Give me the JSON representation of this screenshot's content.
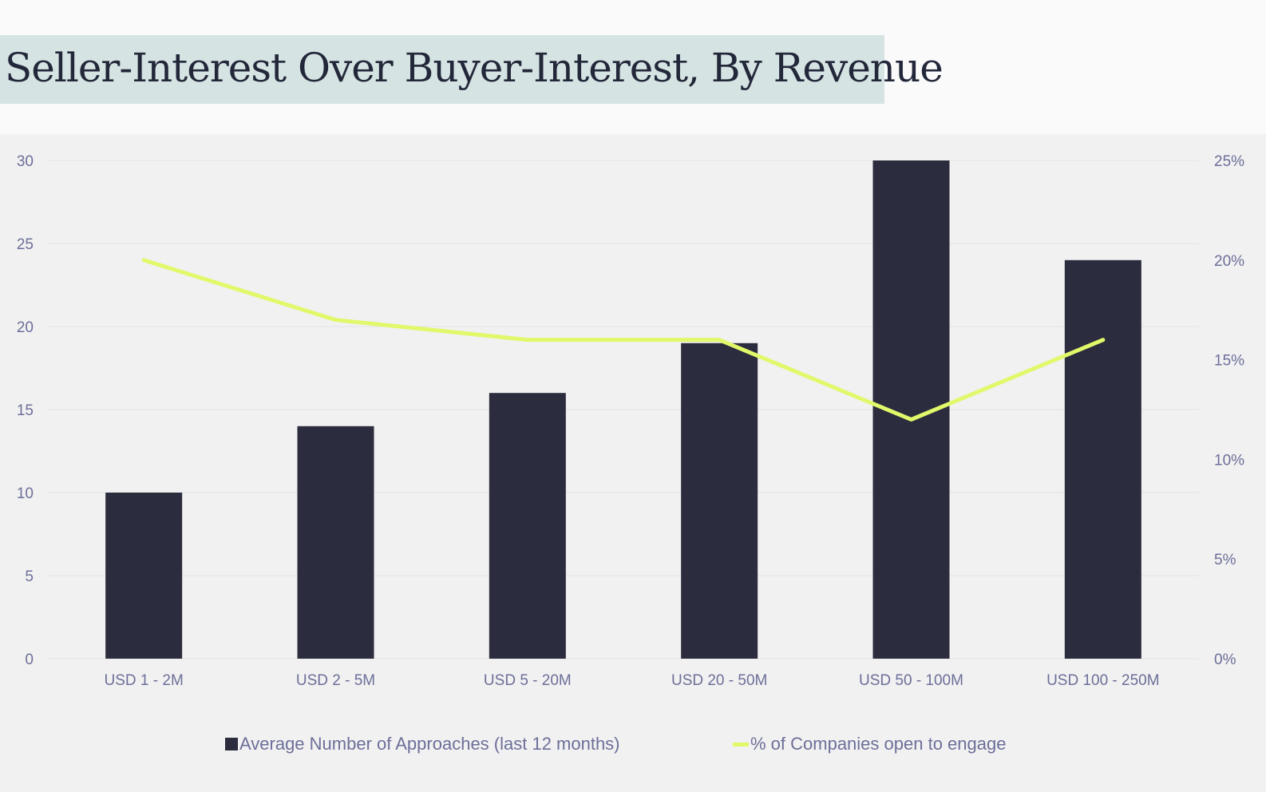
{
  "title": "Seller-Interest Over Buyer-Interest, By Revenue",
  "colors": {
    "bar": "#2b2c3d",
    "line": "#e0f86a",
    "axis_text": "#6c6f99",
    "grid": "#e2e2e2",
    "title_band": "#d5e3e2",
    "panel": "#f1f1f1"
  },
  "chart_data": {
    "type": "bar",
    "title": "Seller-Interest Over Buyer-Interest, By Revenue",
    "categories": [
      "USD 1 - 2M",
      "USD 2 - 5M",
      "USD 5 - 20M",
      "USD 20 - 50M",
      "USD 50 - 100M",
      "USD 100 - 250M"
    ],
    "series": [
      {
        "name": "Average Number of Approaches (last 12 months)",
        "type": "bar",
        "axis": "left",
        "values": [
          10,
          14,
          16,
          19,
          30,
          24
        ]
      },
      {
        "name": "% of Companies open to engage",
        "type": "line",
        "axis": "right",
        "values": [
          20,
          17,
          16,
          16,
          12,
          16
        ]
      }
    ],
    "y_left": {
      "lim": [
        0,
        30
      ],
      "ticks": [
        0,
        5,
        10,
        15,
        20,
        25,
        30
      ],
      "tick_labels": [
        "0",
        "5",
        "10",
        "15",
        "20",
        "25",
        "30"
      ]
    },
    "y_right": {
      "lim": [
        0,
        25
      ],
      "ticks": [
        0,
        5,
        10,
        15,
        20,
        25
      ],
      "tick_labels": [
        "0%",
        "5%",
        "10%",
        "15%",
        "20%",
        "25%"
      ]
    },
    "xlabel": "",
    "ylabel": "",
    "grid": true,
    "legend_position": "bottom-center"
  }
}
